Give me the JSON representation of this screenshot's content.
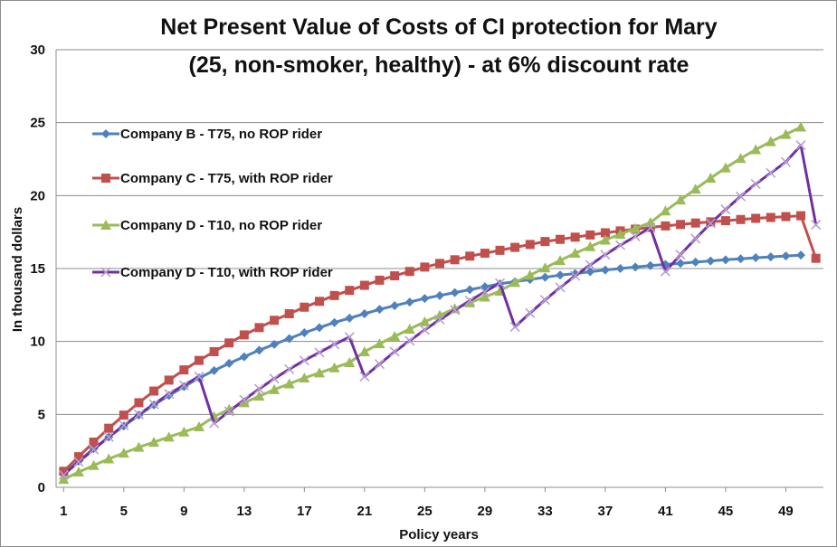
{
  "chart_data": {
    "type": "line",
    "title_line1": "Net Present Value of Costs  of CI protection for Mary",
    "title_line2": "(25, non-smoker, healthy) - at  6% discount rate",
    "xlabel": "Policy years",
    "ylabel": "In thousand dollars",
    "ylim": [
      0,
      30
    ],
    "yticks": [
      0,
      5,
      10,
      15,
      20,
      25,
      30
    ],
    "xticks": [
      1,
      5,
      9,
      13,
      17,
      21,
      25,
      29,
      33,
      37,
      41,
      45,
      49
    ],
    "x": [
      1,
      2,
      3,
      4,
      5,
      6,
      7,
      8,
      9,
      10,
      11,
      12,
      13,
      14,
      15,
      16,
      17,
      18,
      19,
      20,
      21,
      22,
      23,
      24,
      25,
      26,
      27,
      28,
      29,
      30,
      31,
      32,
      33,
      34,
      35,
      36,
      37,
      38,
      39,
      40,
      41,
      42,
      43,
      44,
      45,
      46,
      47,
      48,
      49,
      50,
      51
    ],
    "grid": "horizontal",
    "legend_position": "left",
    "series": [
      {
        "name": "Company B - T75, no ROP rider",
        "color": "#4f81bd",
        "marker": "diamond",
        "values": [
          0.9,
          1.8,
          2.65,
          3.45,
          4.2,
          4.95,
          5.65,
          6.3,
          6.9,
          7.5,
          8.0,
          8.5,
          8.95,
          9.4,
          9.8,
          10.2,
          10.6,
          10.95,
          11.3,
          11.6,
          11.9,
          12.2,
          12.45,
          12.7,
          12.95,
          13.15,
          13.35,
          13.55,
          13.75,
          13.95,
          14.1,
          14.25,
          14.4,
          14.55,
          14.65,
          14.78,
          14.9,
          15.0,
          15.1,
          15.2,
          15.28,
          15.36,
          15.44,
          15.52,
          15.6,
          15.67,
          15.74,
          15.8,
          15.86,
          15.92,
          null
        ]
      },
      {
        "name": "Company C - T75, with ROP rider",
        "color": "#c0504d",
        "marker": "square",
        "values": [
          1.1,
          2.1,
          3.1,
          4.05,
          4.95,
          5.8,
          6.6,
          7.35,
          8.05,
          8.7,
          9.3,
          9.9,
          10.45,
          10.95,
          11.45,
          11.9,
          12.35,
          12.75,
          13.15,
          13.5,
          13.85,
          14.2,
          14.5,
          14.8,
          15.1,
          15.35,
          15.6,
          15.85,
          16.05,
          16.25,
          16.45,
          16.65,
          16.85,
          17.0,
          17.15,
          17.3,
          17.45,
          17.58,
          17.7,
          17.82,
          17.92,
          18.02,
          18.12,
          18.2,
          18.28,
          18.36,
          18.44,
          18.5,
          18.56,
          18.62,
          15.7
        ]
      },
      {
        "name": "Company D - T10, no ROP rider",
        "color": "#9bbb59",
        "marker": "triangle",
        "values": [
          0.55,
          1.05,
          1.5,
          1.95,
          2.35,
          2.75,
          3.1,
          3.45,
          3.8,
          4.15,
          4.85,
          5.35,
          5.8,
          6.25,
          6.7,
          7.1,
          7.5,
          7.85,
          8.2,
          8.55,
          9.3,
          9.85,
          10.35,
          10.85,
          11.35,
          11.8,
          12.25,
          12.65,
          13.05,
          13.45,
          14.05,
          14.55,
          15.05,
          15.55,
          16.05,
          16.5,
          16.95,
          17.35,
          17.75,
          18.15,
          18.95,
          19.7,
          20.45,
          21.2,
          21.9,
          22.55,
          23.15,
          23.7,
          24.2,
          24.7,
          null
        ]
      },
      {
        "name": "Company D - T10, with ROP rider",
        "color": "#7030a0",
        "marker": "x",
        "values": [
          0.85,
          1.75,
          2.6,
          3.45,
          4.25,
          5.0,
          5.7,
          6.4,
          7.0,
          7.6,
          4.4,
          5.2,
          6.0,
          6.75,
          7.45,
          8.1,
          8.7,
          9.25,
          9.8,
          10.3,
          7.6,
          8.45,
          9.3,
          10.05,
          10.8,
          11.5,
          12.15,
          12.8,
          13.4,
          14.0,
          11.0,
          11.95,
          12.85,
          13.7,
          14.5,
          15.25,
          15.95,
          16.6,
          17.2,
          17.8,
          14.8,
          15.95,
          17.05,
          18.1,
          19.05,
          19.95,
          20.8,
          21.55,
          22.3,
          23.45,
          18.0
        ]
      }
    ]
  }
}
